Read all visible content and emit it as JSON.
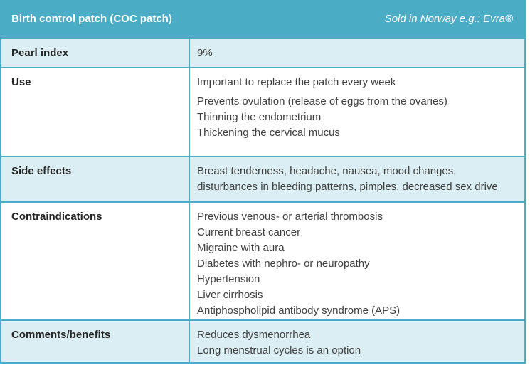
{
  "header": {
    "title": "Birth control patch (COC patch)",
    "note": "Sold in Norway e.g.: Evra®"
  },
  "table": {
    "rows": [
      {
        "label": "Pearl index",
        "paragraphs": [
          [
            "9%"
          ]
        ]
      },
      {
        "label": "Use",
        "paragraphs": [
          [
            "Important to replace the patch every week"
          ],
          [
            "Prevents ovulation (release of eggs from the ovaries)",
            "Thinning the endometrium",
            "Thickening the cervical mucus"
          ]
        ]
      },
      {
        "label": "Side effects",
        "paragraphs": [
          [
            "Breast tenderness, headache, nausea, mood changes,",
            "disturbances in bleeding patterns, pimples, decreased sex drive"
          ]
        ]
      },
      {
        "label": "Contraindications",
        "paragraphs": [
          [
            "Previous venous- or arterial thrombosis",
            "Current breast cancer",
            "Migraine with aura",
            "Diabetes with nephro- or neuropathy",
            "Hypertension",
            "Liver cirrhosis",
            "Antiphospholipid antibody syndrome (APS)"
          ]
        ]
      },
      {
        "label": "Comments/benefits",
        "paragraphs": [
          [
            "Reduces dysmenorrhea",
            "Long menstrual cycles is an option"
          ]
        ]
      }
    ]
  },
  "colors": {
    "header_bg": "#4BACC6",
    "header_text": "#FFFFFF",
    "row_tint": "#DAEEF3",
    "row_plain": "#FFFFFF",
    "border": "#4BACC6",
    "label_text": "#262626",
    "body_text": "#404040"
  }
}
